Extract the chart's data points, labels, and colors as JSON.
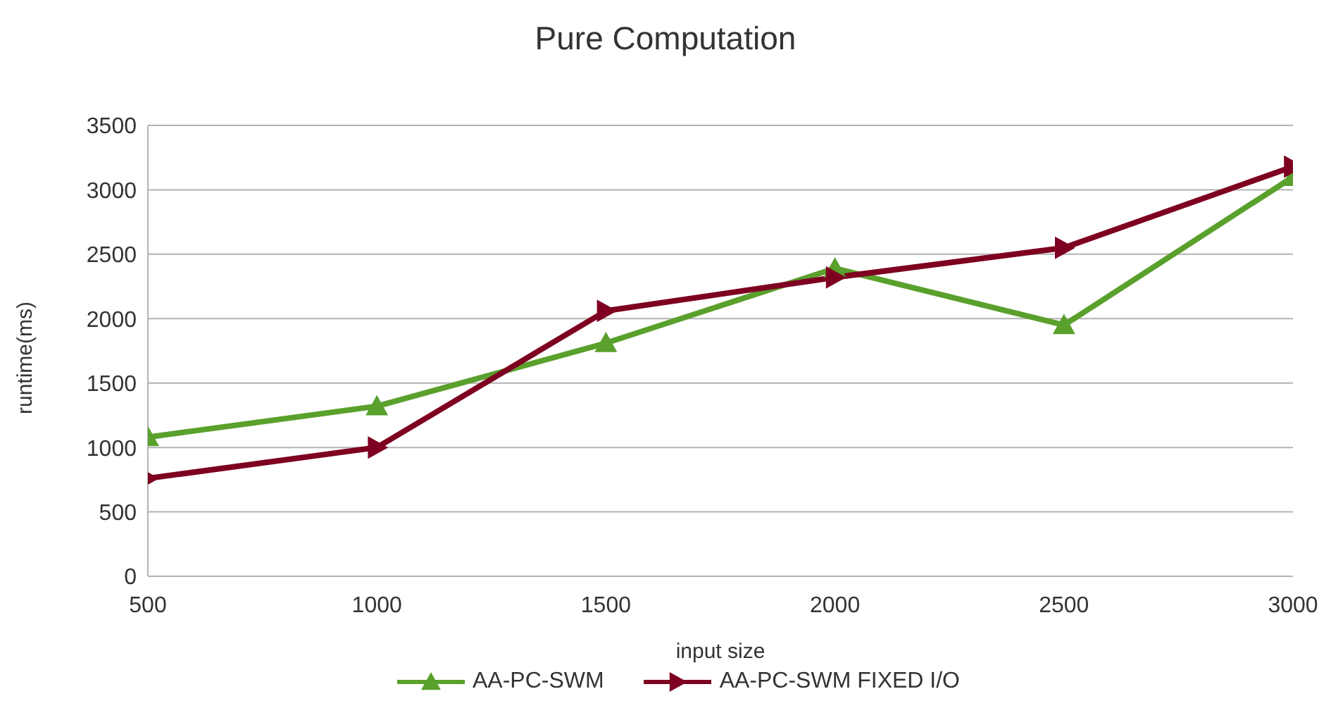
{
  "chart_data": {
    "type": "line",
    "title": "Pure Computation",
    "xlabel": "input size",
    "ylabel": "runtime(ms)",
    "x": [
      500,
      1000,
      1500,
      2000,
      2500,
      3000
    ],
    "series": [
      {
        "name": "AA-PC-SWM",
        "color": "#5aa02c",
        "marker": "triangle",
        "values": [
          1080,
          1320,
          1810,
          2390,
          1950,
          3100
        ]
      },
      {
        "name": "AA-PC-SWM FIXED I/O",
        "color": "#7e0021",
        "marker": "triangle-right",
        "values": [
          760,
          1000,
          2060,
          2320,
          2550,
          3180
        ]
      }
    ],
    "xlim": [
      500,
      3000
    ],
    "xticks": [
      500,
      1000,
      1500,
      2000,
      2500,
      3000
    ],
    "ylim": [
      0,
      3500
    ],
    "yticks": [
      0,
      500,
      1000,
      1500,
      2000,
      2500,
      3000,
      3500
    ],
    "grid": "y",
    "legend": "bottom"
  }
}
